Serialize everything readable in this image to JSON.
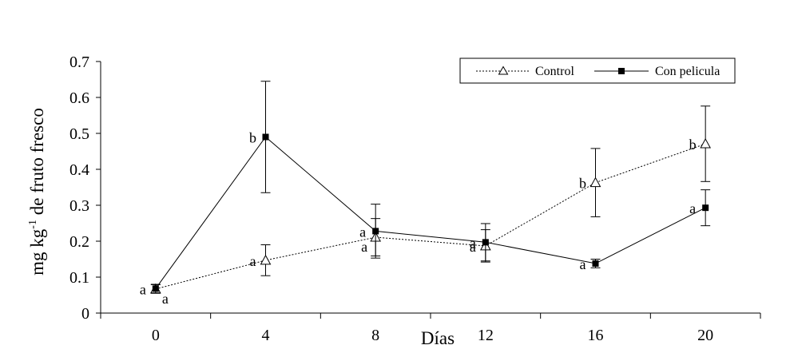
{
  "colors": {
    "axis": "#000000",
    "control_line": "#000000",
    "film_line": "#000000",
    "background": "#ffffff"
  },
  "chart_data": {
    "type": "line",
    "title": "",
    "xlabel": "Días",
    "ylabel_main": "mg kg",
    "ylabel_sup": "-1",
    "ylabel_rest": " de fruto fresco",
    "xlim": [
      -2,
      22
    ],
    "ylim": [
      0,
      0.7
    ],
    "x_ticks": [
      0,
      4,
      8,
      12,
      16,
      20
    ],
    "x_tick_labels": [
      "0",
      "4",
      "8",
      "12",
      "16",
      "20"
    ],
    "y_ticks": [
      0,
      0.1,
      0.2,
      0.3,
      0.4,
      0.5,
      0.6,
      0.7
    ],
    "y_tick_labels": [
      "0",
      "0.1",
      "0.2",
      "0.3",
      "0.4",
      "0.5",
      "0.6",
      "0.7"
    ],
    "legend_position": "top-right",
    "series": [
      {
        "name": "Control",
        "marker": "triangle-open",
        "line": "dotted",
        "x": [
          0,
          4,
          8,
          12,
          16,
          20
        ],
        "values": [
          0.067,
          0.147,
          0.211,
          0.187,
          0.363,
          0.471
        ],
        "errors": [
          0.012,
          0.043,
          0.052,
          0.045,
          0.095,
          0.105
        ],
        "labels": [
          "a",
          "a",
          "a",
          "a",
          "b",
          "b"
        ],
        "label_side": [
          "below-right",
          "left",
          "below-left",
          "left",
          "left",
          "left"
        ]
      },
      {
        "name": "Con pelicula",
        "marker": "square-filled",
        "line": "solid",
        "x": [
          0,
          4,
          8,
          12,
          16,
          20
        ],
        "values": [
          0.068,
          0.49,
          0.228,
          0.197,
          0.138,
          0.293
        ],
        "errors": [
          0.012,
          0.155,
          0.075,
          0.052,
          0.012,
          0.05
        ],
        "labels": [
          "a",
          "b",
          "a",
          "a",
          "a",
          "a"
        ],
        "label_side": [
          "left",
          "left",
          "left",
          "left",
          "left",
          "left"
        ]
      }
    ]
  }
}
